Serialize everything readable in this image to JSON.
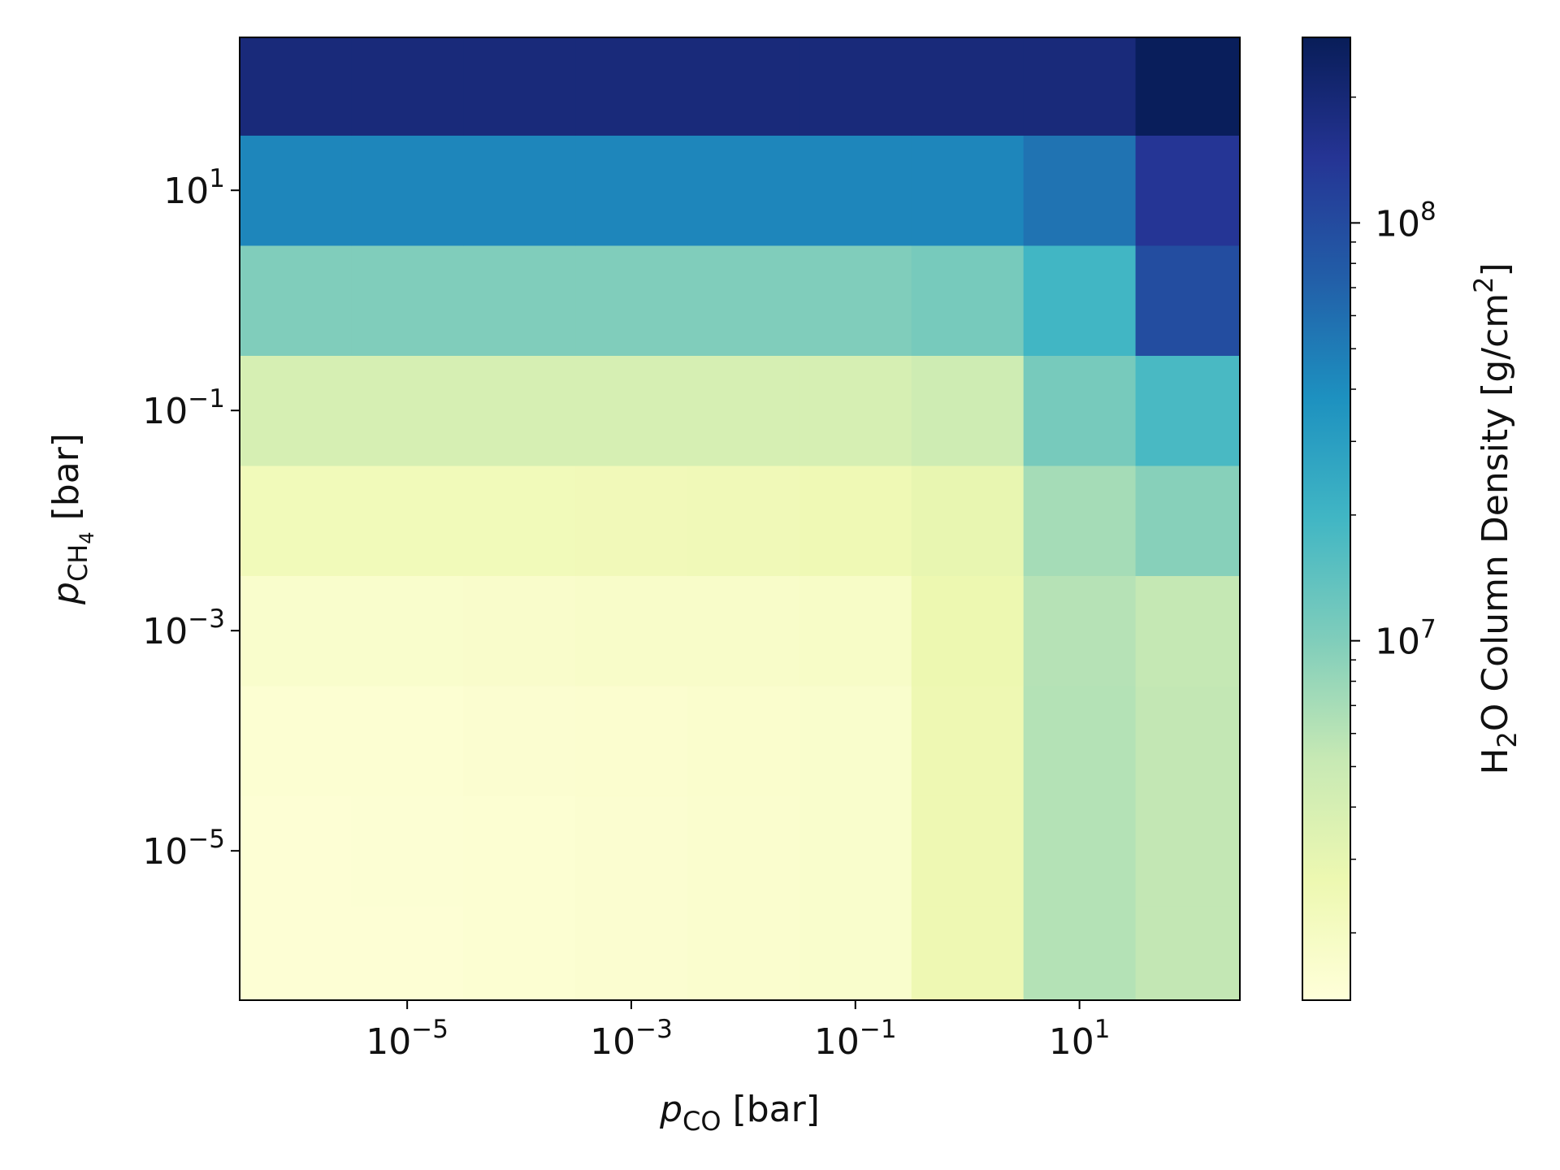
{
  "chart_data": {
    "type": "heatmap",
    "x": [
      1e-06,
      1e-05,
      0.0001,
      0.001,
      0.01,
      0.1,
      1,
      10,
      100
    ],
    "y": [
      1e-06,
      1e-05,
      0.0001,
      0.001,
      0.01,
      0.1,
      1,
      10,
      100
    ],
    "values": [
      [
        1500000.0,
        1500000.0,
        1550000.0,
        1600000.0,
        1650000.0,
        1700000.0,
        2600000.0,
        6200000.0,
        5400000.0
      ],
      [
        1500000.0,
        1520000.0,
        1550000.0,
        1600000.0,
        1650000.0,
        1700000.0,
        2600000.0,
        6200000.0,
        5400000.0
      ],
      [
        1550000.0,
        1550000.0,
        1600000.0,
        1620000.0,
        1670000.0,
        1720000.0,
        2600000.0,
        6200000.0,
        5400000.0
      ],
      [
        1700000.0,
        1700000.0,
        1750000.0,
        1800000.0,
        1800000.0,
        1850000.0,
        2700000.0,
        6100000.0,
        5300000.0
      ],
      [
        2300000.0,
        2300000.0,
        2300000.0,
        2350000.0,
        2400000.0,
        2500000.0,
        2900000.0,
        7100000.0,
        9400000.0
      ],
      [
        4000000.0,
        4000000.0,
        4000000.0,
        4000000.0,
        4000000.0,
        4000000.0,
        4600000.0,
        11000000.0,
        18000000.0
      ],
      [
        10000000.0,
        10000000.0,
        10000000.0,
        10000000.0,
        10000000.0,
        10000000.0,
        11000000.0,
        19500000.0,
        96000000.0
      ],
      [
        44000000.0,
        44000000.0,
        44000000.0,
        44000000.0,
        44000000.0,
        44000000.0,
        44000000.0,
        56000000.0,
        140000000.0
      ],
      [
        190000000.0,
        190000000.0,
        190000000.0,
        190000000.0,
        190000000.0,
        190000000.0,
        190000000.0,
        190000000.0,
        270000000.0
      ]
    ],
    "xlim": [
      3.2e-07,
      270
    ],
    "ylim": [
      4.4e-07,
      245
    ],
    "x_log": true,
    "y_log": true,
    "xticks": [
      {
        "value": 1e-05,
        "label": "10",
        "exponent": "−5"
      },
      {
        "value": 0.001,
        "label": "10",
        "exponent": "−3"
      },
      {
        "value": 0.1,
        "label": "10",
        "exponent": "−1"
      },
      {
        "value": 10,
        "label": "10",
        "exponent": "1"
      }
    ],
    "yticks": [
      {
        "value": 1e-05,
        "label": "10",
        "exponent": "−5"
      },
      {
        "value": 0.001,
        "label": "10",
        "exponent": "−3"
      },
      {
        "value": 0.1,
        "label": "10",
        "exponent": "−1"
      },
      {
        "value": 10,
        "label": "10",
        "exponent": "1"
      }
    ],
    "x_label": [
      {
        "text": "p",
        "style": "italic"
      },
      {
        "text": "CO",
        "style": "sub"
      },
      {
        "text": " [bar]"
      }
    ],
    "y_label": [
      {
        "text": "p",
        "style": "italic"
      },
      {
        "text": "CH",
        "style": "sub"
      },
      {
        "text": "4",
        "style": "subsub"
      },
      {
        "text": " [bar]"
      }
    ],
    "colorbar": {
      "label": [
        {
          "text": "H"
        },
        {
          "text": "2",
          "style": "sub"
        },
        {
          "text": "O Column Density [g/cm"
        },
        {
          "text": "2",
          "style": "super"
        },
        {
          "text": "]"
        }
      ],
      "clim": [
        1380000.0,
        278000000.0
      ],
      "log": true,
      "colormap": [
        "#ffffd9",
        "#edf8b1",
        "#c7e9b4",
        "#7fcdbb",
        "#41b6c4",
        "#1d91c0",
        "#225ea8",
        "#253494",
        "#081d58"
      ],
      "ticks": [
        {
          "value": 10000000.0,
          "label": "10",
          "exponent": "7"
        },
        {
          "value": 100000000.0,
          "label": "10",
          "exponent": "8"
        }
      ],
      "minor_ticks": [
        2000000.0,
        3000000.0,
        4000000.0,
        5000000.0,
        6000000.0,
        7000000.0,
        8000000.0,
        9000000.0,
        20000000.0,
        30000000.0,
        40000000.0,
        50000000.0,
        60000000.0,
        70000000.0,
        80000000.0,
        90000000.0,
        200000000.0
      ]
    }
  }
}
